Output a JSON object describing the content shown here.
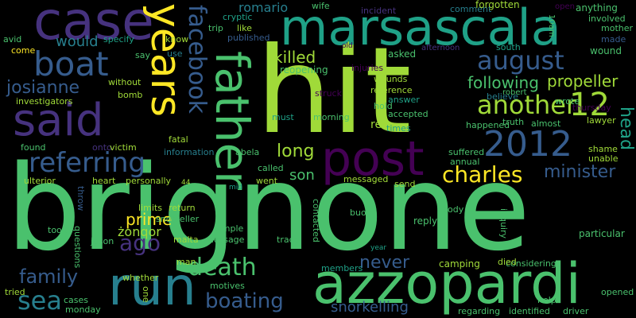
{
  "colors": {
    "background": "#000000",
    "lime": "#a0da39",
    "green": "#4ac16d",
    "teal": "#1fa187",
    "cyan": "#277f8e",
    "blue": "#365c8d",
    "indigo": "#46327e",
    "violet": "#440154",
    "yellow": "#fde725"
  },
  "words": {
    "brignone": "brignone",
    "hit": "hit",
    "azzopardi": "azzopardi",
    "marsascala": "marsascala",
    "said": "said",
    "father": "father",
    "run": "run",
    "case": "case",
    "post": "post",
    "years": "years",
    "boat": "boat",
    "2012": "2012",
    "12": "12",
    "facebook": "facebook",
    "august": "august",
    "referring": "referring",
    "death": "death",
    "another": "another",
    "charles": "charles",
    "sea": "sea",
    "family": "family",
    "boating": "boating",
    "killed": "killed",
    "following": "following",
    "propeller": "propeller",
    "josianne": "josianne",
    "long": "long",
    "minister": "minister",
    "head": "head",
    "ago": "ago",
    "prime": "prime",
    "never": "never",
    "snorkelling": "snorkelling",
    "would": "would",
    "son": "son",
    "romario": "romario",
    "cryptic": "cryptic",
    "trip": "trip",
    "like": "like",
    "published": "published",
    "wife": "wife",
    "incident": "incident",
    "comment": "comment",
    "forgotten": "forgotten",
    "anything": "anything",
    "involved": "involved",
    "mother": "mother",
    "made": "made",
    "10am": "10am",
    "open": "open",
    "avid": "avid",
    "specify": "specify",
    "know": "know",
    "come": "come",
    "say": "say",
    "use": "use",
    "old": "old",
    "asked": "asked",
    "afternoon": "afternoon",
    "south": "south",
    "wound": "wound",
    "investigators": "investigators",
    "without": "without",
    "bomb": "bomb",
    "reopening": "reopening",
    "injuries": "injuries",
    "wounds": "wounds",
    "reference": "reference",
    "robert": "robert",
    "believe": "believe",
    "answer": "answer",
    "struck": "struck",
    "wrote": "wrote",
    "hold": "hold",
    "accepted": "accepted",
    "must": "must",
    "morning": "morning",
    "re": "re",
    "times": "times",
    "truth": "truth",
    "almost": "almost",
    "thursday": "thursday",
    "lawyer": "lawyer",
    "happened": "happened",
    "found": "found",
    "onto": "onto",
    "victim": "victim",
    "information": "information",
    "abela": "abela",
    "suffered": "suffered",
    "shame": "shame",
    "unable": "unable",
    "ulterior": "ulterior",
    "heart": "heart",
    "personally": "personally",
    "fatal": "fatal",
    "called": "called",
    "annual": "annual",
    "went": "went",
    "messaged": "messaged",
    "send": "send",
    "44": "44",
    "mid": "mid",
    "throw": "throw",
    "limits": "limits",
    "return": "return",
    "snorkeller": "snorkeller",
    "zonqor": "żonqor",
    "malta": "malta",
    "took": "took",
    "questions": "questions",
    "simple": "simple",
    "message": "message",
    "trace": "trace",
    "contacted": "contacted",
    "buoy": "buoy",
    "body": "body",
    "reply": "reply",
    "inquiry": "inquiry",
    "particular": "particular",
    "jason": "jason",
    "man": "man",
    "considering": "considering",
    "died": "died",
    "camping": "camping",
    "members": "members",
    "year": "year",
    "whether": "whether",
    "one": "one",
    "motives": "motives",
    "tried": "tried",
    "cases": "cases",
    "monday": "monday",
    "regarding": "regarding",
    "identified": "identified",
    "driver": "driver",
    "help": "help",
    "opened": "opened"
  }
}
